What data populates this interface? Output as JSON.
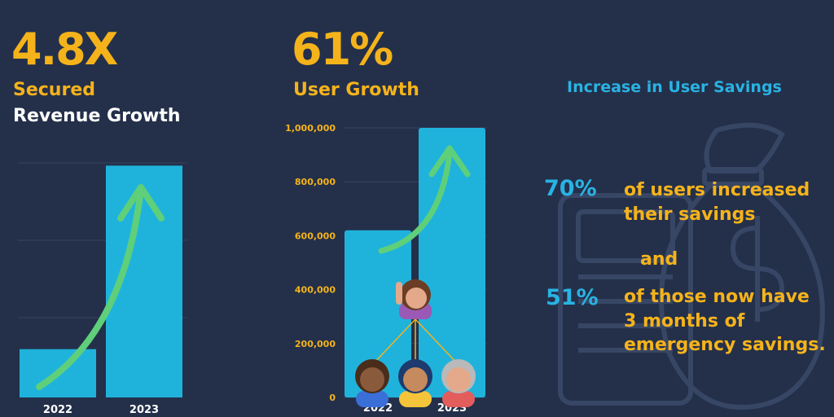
{
  "revenue": {
    "big_value": "4.8X",
    "label_line1": "Secured",
    "label_line2": "Revenue Growth"
  },
  "users": {
    "big_value": "61%",
    "label": "User Growth"
  },
  "savings": {
    "title": "Increase in User Savings",
    "stat1_pct": "70%",
    "stat1_line1": "of users increased",
    "stat1_line2": "their savings",
    "connector": "and",
    "stat2_pct": "51%",
    "stat2_line1": "of those now have",
    "stat2_line2": "3 months of",
    "stat2_line3": "emergency savings."
  },
  "colors": {
    "background": "#24304a",
    "bar": "#1fb3dc",
    "arrow": "#5fcf7a",
    "accent_yellow": "#f5b31b",
    "accent_blue": "#29b3e3"
  },
  "chart_data": [
    {
      "type": "bar",
      "categories": [
        "2022",
        "2023"
      ],
      "values": [
        1,
        4.8
      ],
      "title": "",
      "xlabel": "",
      "ylabel": "",
      "ylim": [
        0,
        5.7
      ],
      "grid": true
    },
    {
      "type": "bar",
      "categories": [
        "2022",
        "2023"
      ],
      "values": [
        620000,
        1000000
      ],
      "title": "",
      "xlabel": "",
      "ylabel": "",
      "ylim": [
        0,
        1000000
      ],
      "yticks": [
        "0",
        "200,000",
        "400,000",
        "600,000",
        "800,000",
        "1,000,000"
      ],
      "grid": true
    }
  ]
}
